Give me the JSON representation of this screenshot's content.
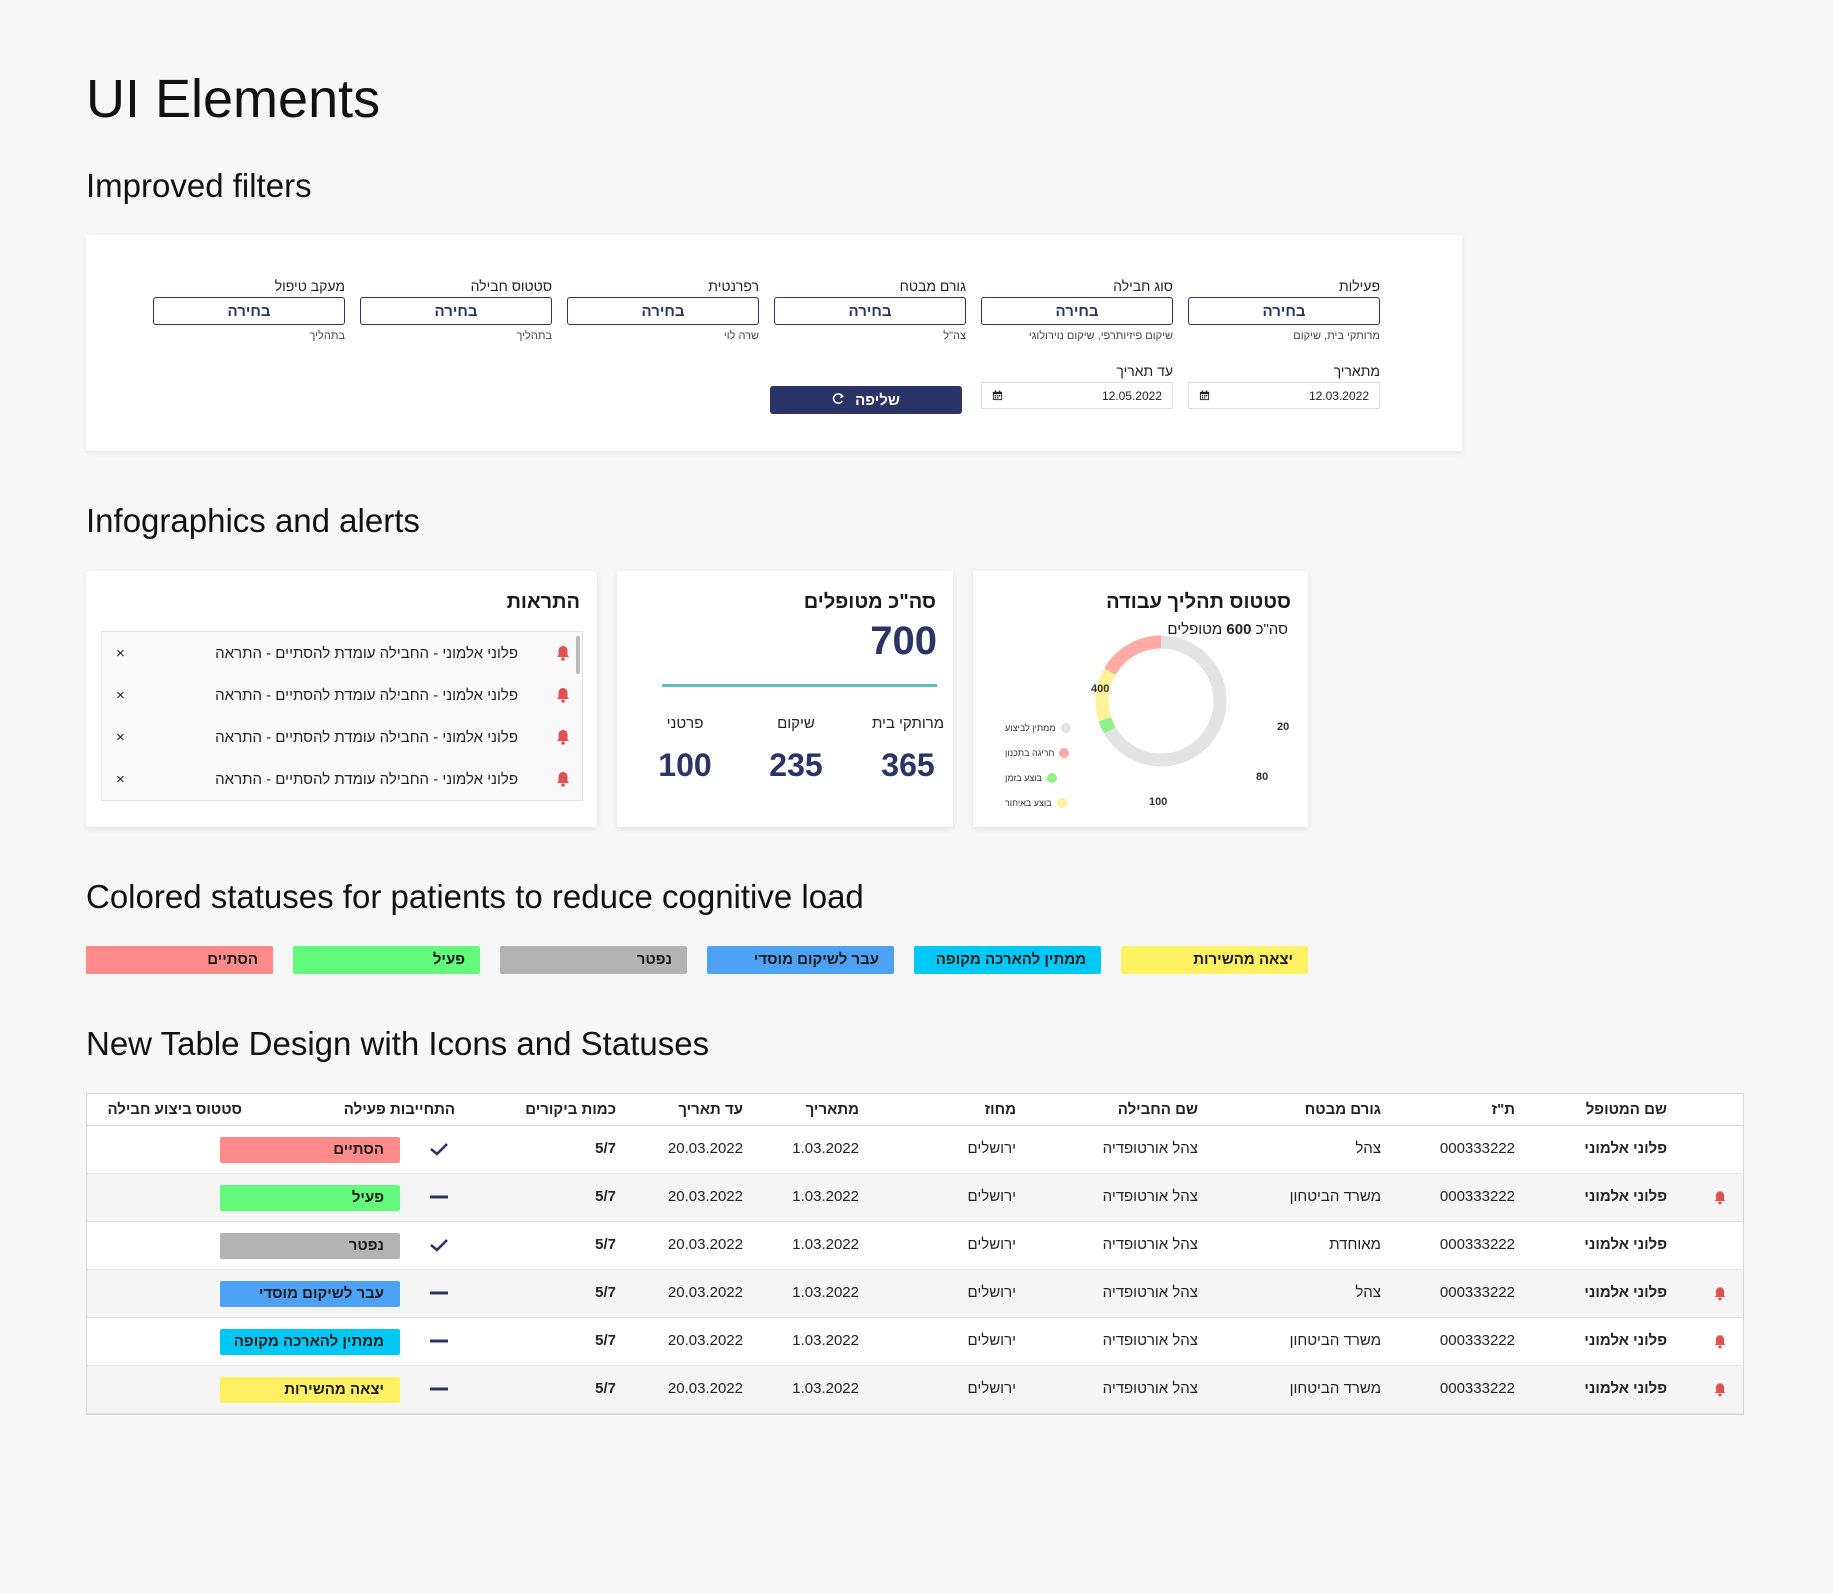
{
  "page_title": "UI Elements",
  "sections": {
    "filters": "Improved filters",
    "infographics": "Infographics and alerts",
    "statuses": "Colored statuses for patients to reduce cognitive load",
    "table": "New Table Design with Icons and Statuses"
  },
  "filters": {
    "columns": [
      {
        "label": "פעילות",
        "value": "בחירה",
        "sub": "מרותקי בית, שיקום"
      },
      {
        "label": "סוג חבילה",
        "value": "בחירה",
        "sub": "שיקום פיזיותרפי, שיקום נוירולוגי"
      },
      {
        "label": "גורם מבטח",
        "value": "בחירה",
        "sub": "צה\"ל"
      },
      {
        "label": "רפרנטית",
        "value": "בחירה",
        "sub": "שרה לוי"
      },
      {
        "label": "סטטוס חבילה",
        "value": "בחירה",
        "sub": "בתהליך"
      },
      {
        "label": "מעקב טיפול",
        "value": "בחירה",
        "sub": "בתהליך"
      }
    ],
    "from_date_label": "מתאריך",
    "from_date": "12.03.2022",
    "to_date_label": "עד תאריך",
    "to_date": "12.05.2022",
    "retrieve_label": "שליפה"
  },
  "alerts": {
    "title": "התראות",
    "items": [
      "פלוני אלמוני - החבילה עומדת להסתיים - התראה",
      "פלוני אלמוני - החבילה עומדת להסתיים - התראה",
      "פלוני אלמוני - החבילה עומדת להסתיים - התראה",
      "פלוני אלמוני - החבילה עומדת להסתיים - התראה"
    ],
    "close_symbol": "×"
  },
  "totals": {
    "title": "סה\"כ מטופלים",
    "total": "700",
    "stats": [
      {
        "label": "מרותקי בית",
        "value": "365"
      },
      {
        "label": "שיקום",
        "value": "235"
      },
      {
        "label": "פרטני",
        "value": "100"
      }
    ]
  },
  "work_status": {
    "title": "סטטוס תהליך עבודה",
    "subtitle_prefix": "סה\"כ",
    "subtitle_total": "600",
    "subtitle_suffix": "מטופלים",
    "segments": [
      {
        "name": "ממתין לביצוע",
        "value": 400,
        "color": "#e3e3e3"
      },
      {
        "name": "בוצע בזמן",
        "value": 20,
        "color": "#8ef08a"
      },
      {
        "name": "בוצע באיחור",
        "value": 80,
        "color": "#fff29a"
      },
      {
        "name": "חריגה בתכנון",
        "value": 100,
        "color": "#ffaaa5"
      }
    ],
    "legend": [
      {
        "name": "ממתין לביצוע",
        "color": "#e3e3e3"
      },
      {
        "name": "חריגה בתכנון",
        "color": "#ffaaa5"
      },
      {
        "name": "בוצע בזמן",
        "color": "#8ef08a"
      },
      {
        "name": "בוצע באיחור",
        "color": "#fff29a"
      }
    ],
    "labels": {
      "waiting": "400",
      "on_time": "20",
      "late": "80",
      "exceeded": "100"
    }
  },
  "status_pills": [
    {
      "label": "יצאה מהשירות",
      "color": "#fff162"
    },
    {
      "label": "ממתין להארכה מקופה",
      "color": "#00c8f5"
    },
    {
      "label": "עבר לשיקום מוסדי",
      "color": "#4ea2f5"
    },
    {
      "label": "נפטר",
      "color": "#b3b3b3"
    },
    {
      "label": "פעיל",
      "color": "#62f97c"
    },
    {
      "label": "הסתיים",
      "color": "#ff8a8a"
    }
  ],
  "table": {
    "headers": [
      "שם המטופל",
      "ת\"ז",
      "גורם מבטח",
      "שם החבילה",
      "מחוז",
      "מתאריך",
      "עד תאריך",
      "כמות ביקורים",
      "התחייבות פעילה",
      "סטטוס ביצוע חבילה"
    ],
    "rows": [
      {
        "alert": false,
        "name": "פלוני אלמוני",
        "id": "000333222",
        "insurer": "צהל",
        "package": "צהל אורטופדיה",
        "district": "ירושלים",
        "from": "1.03.2022",
        "to": "20.03.2022",
        "visits": "5/7",
        "commitment": "check",
        "status": "הסתיים",
        "status_color": "#ff8a8a"
      },
      {
        "alert": true,
        "name": "פלוני אלמוני",
        "id": "000333222",
        "insurer": "משרד הביטחון",
        "package": "צהל אורטופדיה",
        "district": "ירושלים",
        "from": "1.03.2022",
        "to": "20.03.2022",
        "visits": "5/7",
        "commitment": "dash",
        "status": "פעיל",
        "status_color": "#62f97c"
      },
      {
        "alert": false,
        "name": "פלוני אלמוני",
        "id": "000333222",
        "insurer": "מאוחדת",
        "package": "צהל אורטופדיה",
        "district": "ירושלים",
        "from": "1.03.2022",
        "to": "20.03.2022",
        "visits": "5/7",
        "commitment": "check",
        "status": "נפטר",
        "status_color": "#b3b3b3"
      },
      {
        "alert": true,
        "name": "פלוני אלמוני",
        "id": "000333222",
        "insurer": "צהל",
        "package": "צהל אורטופדיה",
        "district": "ירושלים",
        "from": "1.03.2022",
        "to": "20.03.2022",
        "visits": "5/7",
        "commitment": "dash",
        "status": "עבר לשיקום מוסדי",
        "status_color": "#4ea2f5"
      },
      {
        "alert": true,
        "name": "פלוני אלמוני",
        "id": "000333222",
        "insurer": "משרד הביטחון",
        "package": "צהל אורטופדיה",
        "district": "ירושלים",
        "from": "1.03.2022",
        "to": "20.03.2022",
        "visits": "5/7",
        "commitment": "dash",
        "status": "ממתין להארכה מקופה",
        "status_color": "#00c8f5"
      },
      {
        "alert": true,
        "name": "פלוני אלמוני",
        "id": "000333222",
        "insurer": "משרד הביטחון",
        "package": "צהל אורטופדיה",
        "district": "ירושלים",
        "from": "1.03.2022",
        "to": "20.03.2022",
        "visits": "5/7",
        "commitment": "dash",
        "status": "יצאה מהשירות",
        "status_color": "#fff162"
      }
    ]
  }
}
